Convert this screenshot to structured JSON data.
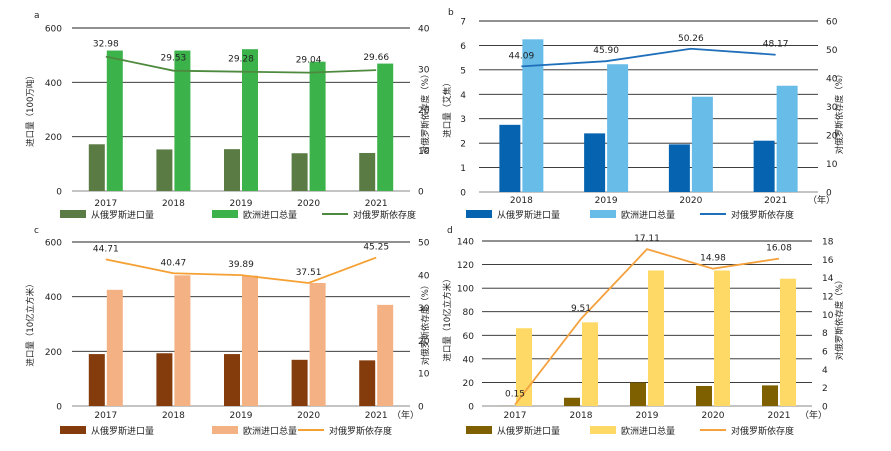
{
  "chart_data": [
    {
      "panel": "a",
      "type": "bar",
      "categories": [
        "2017",
        "2018",
        "2019",
        "2020",
        "2021"
      ],
      "series": [
        {
          "name": "从俄罗斯进口量",
          "type": "bar",
          "axis": "left",
          "color": "#5b7b44",
          "values": [
            172,
            153,
            154,
            139,
            140
          ]
        },
        {
          "name": "欧洲进口总量",
          "type": "bar",
          "axis": "left",
          "color": "#3cb24a",
          "values": [
            517,
            517,
            522,
            476,
            469
          ]
        },
        {
          "name": "对俄罗斯依存度",
          "type": "line",
          "axis": "right",
          "color": "#4e8a3e",
          "values": [
            32.98,
            29.53,
            29.28,
            29.04,
            29.66
          ]
        }
      ],
      "data_labels": [
        "32.98",
        "29.53",
        "29.28",
        "29.04",
        "29.66"
      ],
      "ylabel": "进口量（100万吨）",
      "y2label": "对俄罗斯依存度（%）",
      "ylim": [
        0,
        600
      ],
      "yticks": [
        "0",
        "200",
        "400",
        "600"
      ],
      "y2lim": [
        0,
        40
      ],
      "y2ticks": [
        "0",
        "10",
        "20",
        "30",
        "40"
      ],
      "x_unit": "",
      "grid": true,
      "legend_position": "bottom"
    },
    {
      "panel": "b",
      "type": "bar",
      "categories": [
        "2018",
        "2019",
        "2020",
        "2021"
      ],
      "series": [
        {
          "name": "从俄罗斯进口量",
          "type": "bar",
          "axis": "left",
          "color": "#0563b0",
          "values": [
            2.75,
            2.4,
            1.95,
            2.1
          ]
        },
        {
          "name": "欧洲进口总量",
          "type": "bar",
          "axis": "left",
          "color": "#67bce8",
          "values": [
            6.25,
            5.23,
            3.9,
            4.35
          ]
        },
        {
          "name": "对俄罗斯依存度",
          "type": "line",
          "axis": "right",
          "color": "#1f6fba",
          "values": [
            44.09,
            45.9,
            50.26,
            48.17
          ]
        }
      ],
      "data_labels": [
        "44.09",
        "45.90",
        "50.26",
        "48.17"
      ],
      "ylabel": "进口量（艾焦）",
      "y2label": "对俄罗斯依存度（%）",
      "ylim": [
        0,
        7
      ],
      "yticks": [
        "0",
        "1",
        "2",
        "3",
        "4",
        "5",
        "6",
        "7"
      ],
      "y2lim": [
        0,
        60
      ],
      "y2ticks": [
        "0",
        "10",
        "20",
        "30",
        "40",
        "50",
        "60"
      ],
      "x_unit": "（年）",
      "grid": true,
      "legend_position": "bottom"
    },
    {
      "panel": "c",
      "type": "bar",
      "categories": [
        "2017",
        "2018",
        "2019",
        "2020",
        "2021"
      ],
      "series": [
        {
          "name": "从俄罗斯进口量",
          "type": "bar",
          "axis": "left",
          "color": "#843c0c",
          "values": [
            190,
            193,
            190,
            169,
            167
          ]
        },
        {
          "name": "欧洲进口总量",
          "type": "bar",
          "axis": "left",
          "color": "#f4b183",
          "values": [
            425,
            478,
            477,
            450,
            370
          ]
        },
        {
          "name": "对俄罗斯依存度",
          "type": "line",
          "axis": "right",
          "color": "#f5a033",
          "values": [
            44.71,
            40.47,
            39.89,
            37.51,
            45.25
          ]
        }
      ],
      "data_labels": [
        "44.71",
        "40.47",
        "39.89",
        "37.51",
        "45.25"
      ],
      "ylabel": "进口量（10亿立方米）",
      "y2label": "对俄罗斯依存度（%）",
      "ylim": [
        0,
        600
      ],
      "yticks": [
        "0",
        "200",
        "400",
        "600"
      ],
      "y2lim": [
        0,
        50
      ],
      "y2ticks": [
        "0",
        "10",
        "20",
        "30",
        "40",
        "50"
      ],
      "x_unit": "（年）",
      "grid": true,
      "legend_position": "bottom"
    },
    {
      "panel": "d",
      "type": "bar",
      "categories": [
        "2017",
        "2018",
        "2019",
        "2020",
        "2021"
      ],
      "series": [
        {
          "name": "从俄罗斯进口量",
          "type": "bar",
          "axis": "left",
          "color": "#7f6000",
          "values": [
            0.1,
            7.0,
            20.0,
            17.0,
            17.5
          ]
        },
        {
          "name": "欧洲进口总量",
          "type": "bar",
          "axis": "left",
          "color": "#ffd966",
          "values": [
            66,
            71,
            115,
            115,
            108
          ]
        },
        {
          "name": "对俄罗斯依存度",
          "type": "line",
          "axis": "right",
          "color": "#f4a13e",
          "values": [
            0.15,
            9.51,
            17.11,
            14.98,
            16.08
          ]
        }
      ],
      "data_labels": [
        "0.15",
        "9.51",
        "17.11",
        "14.98",
        "16.08"
      ],
      "ylabel": "进口量（10亿立方米）",
      "y2label": "对俄罗斯依存度（%）",
      "ylim": [
        0,
        140
      ],
      "yticks": [
        "0",
        "20",
        "40",
        "60",
        "80",
        "100",
        "120",
        "140"
      ],
      "y2lim": [
        0,
        18
      ],
      "y2ticks": [
        "0",
        "2",
        "4",
        "6",
        "8",
        "10",
        "12",
        "14",
        "16",
        "18"
      ],
      "x_unit": "（年）",
      "grid": true,
      "legend_position": "bottom"
    }
  ]
}
